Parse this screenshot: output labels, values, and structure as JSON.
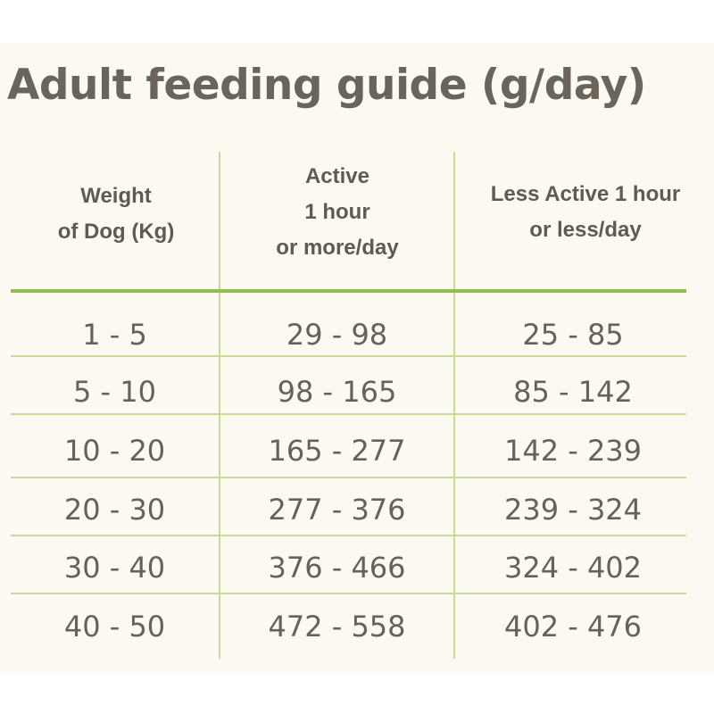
{
  "title": "Adult feeding guide (g/day)",
  "columns": [
    {
      "lines": [
        "Weight",
        "of Dog (Kg)"
      ]
    },
    {
      "lines": [
        "Active",
        "1 hour",
        "or more/day"
      ]
    },
    {
      "lines": [
        "Less Active 1 hour",
        "or less/day"
      ]
    }
  ],
  "rows": [
    [
      "1 - 5",
      "29 - 98",
      "25 - 85"
    ],
    [
      "5 - 10",
      "98 - 165",
      "85 - 142"
    ],
    [
      "10 - 20",
      "165 - 277",
      "142 - 239"
    ],
    [
      "20 - 30",
      "277 - 376",
      "239 - 324"
    ],
    [
      "30 - 40",
      "376 - 466",
      "324 - 402"
    ],
    [
      "40 - 50",
      "472 - 558",
      "402 - 476"
    ]
  ],
  "colors": {
    "accent_green": "#8bc04a",
    "light_green": "#c6dd8e",
    "text": "#66615a",
    "background": "#fcf9f3"
  }
}
